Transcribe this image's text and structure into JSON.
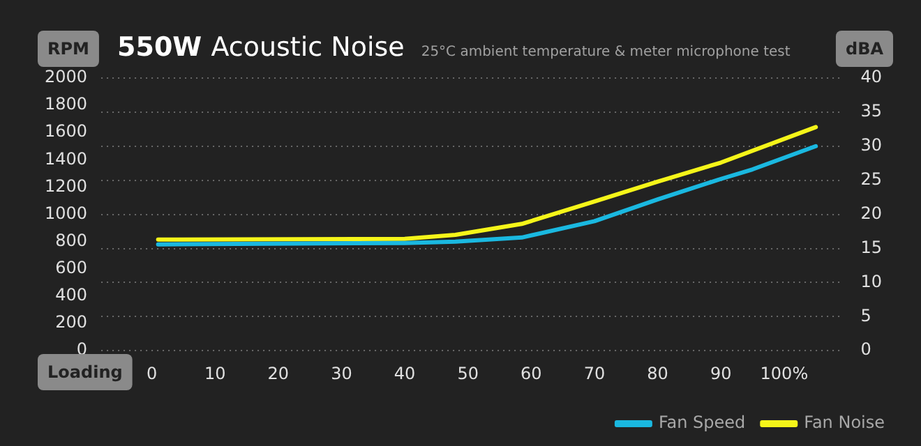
{
  "chart_data": {
    "type": "line",
    "title": "550W Acoustic Noise",
    "subtitle": "25°C ambient temperature & meter microphone test",
    "xlabel": "Loading",
    "ylabel": "RPM",
    "y2label": "dBA",
    "xlim": [
      -8,
      109
    ],
    "xticks": [
      0,
      10,
      20,
      30,
      40,
      50,
      60,
      70,
      80,
      90,
      {
        "value": 100,
        "label": "100%"
      }
    ],
    "ylim": [
      0,
      2000
    ],
    "yticks": [
      0,
      200,
      400,
      600,
      800,
      1000,
      1200,
      1400,
      1600,
      1800,
      2000
    ],
    "y2lim": [
      0,
      40
    ],
    "y2ticks": [
      0,
      5,
      10,
      15,
      20,
      25,
      30,
      35,
      40
    ],
    "grid": "y2",
    "legend": "bottom right",
    "marker": "none",
    "line_style": "solid",
    "series": [
      {
        "name": "Fan Speed",
        "color": "#1ab8e0",
        "x": [
          1,
          40,
          48,
          58.5,
          70,
          80,
          90,
          95,
          105
        ],
        "values": [
          780,
          790,
          800,
          830,
          950,
          1110,
          1260,
          1330,
          1500
        ]
      },
      {
        "name": "Fan Noise",
        "color": "#f5f519",
        "axis": "y2",
        "x": [
          1,
          40,
          48,
          58.5,
          70,
          80,
          90,
          105
        ],
        "values": [
          16.3,
          16.4,
          17,
          18.6,
          21.9,
          24.8,
          27.6,
          32.8
        ]
      }
    ]
  }
}
